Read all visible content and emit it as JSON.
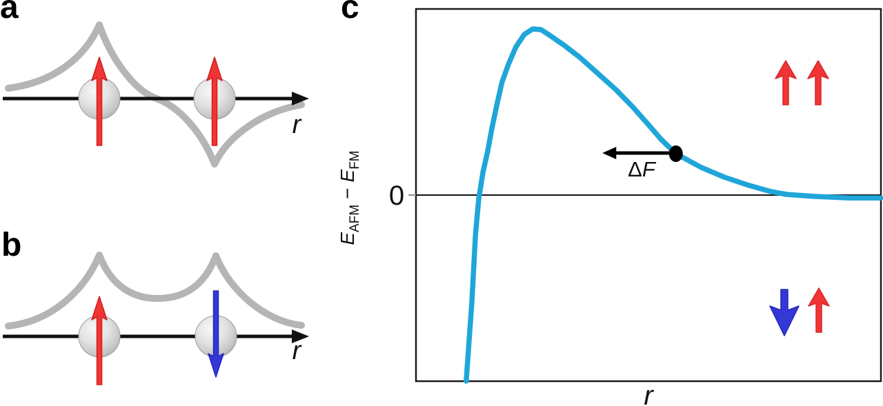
{
  "figure": {
    "panel_a_label": "a",
    "panel_b_label": "b",
    "panel_c_label": "c"
  },
  "panel_a": {
    "axis_label": "r",
    "spins": [
      "up",
      "up"
    ],
    "orbital": "antisymmetric"
  },
  "panel_b": {
    "axis_label": "r",
    "spins": [
      "up",
      "down"
    ],
    "orbital": "symmetric"
  },
  "panel_c": {
    "x_axis_label": "r",
    "zero_label": "0",
    "y_axis_label": {
      "e1": "E",
      "sub1": "AFM",
      "minus": "−",
      "e2": "E",
      "sub2": "FM"
    },
    "force_label": {
      "delta": "Δ",
      "f": "F"
    }
  },
  "chart_data": {
    "type": "line",
    "title": "",
    "xlabel": "r",
    "ylabel": "E_AFM − E_FM",
    "grid": false,
    "legend": false,
    "x_range_normalized": [
      0,
      1
    ],
    "y_zero_label": "0",
    "y_peak_normalized": 1.0,
    "series": [
      {
        "name": "E_AFM - E_FM",
        "x": [
          0.108,
          0.12,
          0.128,
          0.135,
          0.144,
          0.154,
          0.163,
          0.174,
          0.185,
          0.199,
          0.215,
          0.233,
          0.251,
          0.269,
          0.285,
          0.317,
          0.352,
          0.392,
          0.43,
          0.466,
          0.499,
          0.527,
          0.559,
          0.614,
          0.663,
          0.712,
          0.763,
          0.797,
          0.856,
          0.93,
          1.0
        ],
        "y": [
          -1.12,
          -0.651,
          -0.237,
          -0.021,
          0.137,
          0.261,
          0.398,
          0.544,
          0.68,
          0.788,
          0.892,
          0.967,
          1.0,
          0.996,
          0.967,
          0.905,
          0.83,
          0.73,
          0.635,
          0.531,
          0.427,
          0.336,
          0.249,
          0.166,
          0.108,
          0.062,
          0.021,
          0.004,
          -0.008,
          -0.017,
          -0.017
        ]
      }
    ],
    "annotations": [
      {
        "type": "point",
        "x": 0.559,
        "y": 0.249
      },
      {
        "type": "arrow",
        "label": "ΔF",
        "from_x": 0.552,
        "to_x": 0.401,
        "y": 0.253
      },
      {
        "type": "spin-pair",
        "region": "upper-right",
        "spins": [
          "up",
          "up"
        ],
        "meaning": "FM aligned"
      },
      {
        "type": "spin-pair",
        "region": "lower-right",
        "spins": [
          "down",
          "up"
        ],
        "meaning": "AFM anti-aligned"
      }
    ]
  },
  "colors": {
    "curve_cyan": "#1fa6d9",
    "spin_up_red": "#f13434",
    "spin_down_blue": "#3438d6",
    "orbital_gray": "#b5b5b5",
    "axis_black": "#111111"
  }
}
